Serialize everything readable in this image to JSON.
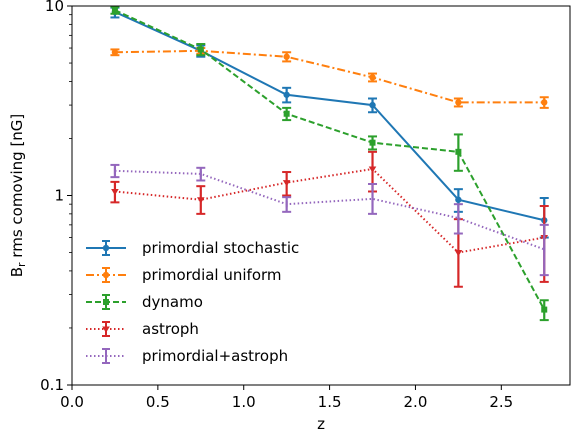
{
  "chart_data": {
    "type": "line",
    "xlabel": "z",
    "ylabel_main": "B",
    "ylabel_sub": "r",
    "ylabel_rest": " rms comoving [nG]",
    "xlim": [
      0.0,
      2.9
    ],
    "ylim": [
      0.1,
      10
    ],
    "yscale": "log",
    "xticks": [
      0.0,
      0.5,
      1.0,
      1.5,
      2.0,
      2.5
    ],
    "xtick_labels": [
      "0.0",
      "0.5",
      "1.0",
      "1.5",
      "2.0",
      "2.5"
    ],
    "yticks": [
      0.1,
      1,
      10
    ],
    "ytick_labels": [
      "0.1",
      "1",
      "10"
    ],
    "grid": false,
    "legend_position": "lower-left",
    "series": [
      {
        "name": "primordial stochastic",
        "color": "#1f77b4",
        "linestyle": "solid",
        "marker": "circle",
        "x": [
          0.25,
          0.75,
          1.25,
          1.75,
          2.25,
          2.75
        ],
        "y": [
          9.3,
          5.8,
          3.4,
          3.0,
          0.95,
          0.74
        ],
        "err_low": [
          8.7,
          5.4,
          3.1,
          2.75,
          0.82,
          0.6
        ],
        "err_high": [
          9.8,
          6.2,
          3.7,
          3.25,
          1.08,
          0.97
        ]
      },
      {
        "name": "primordial uniform",
        "color": "#ff7f0e",
        "linestyle": "dashdot",
        "marker": "circle",
        "x": [
          0.25,
          0.75,
          1.25,
          1.75,
          2.25,
          2.75
        ],
        "y": [
          5.7,
          5.8,
          5.4,
          4.2,
          3.1,
          3.1
        ],
        "err_low": [
          5.5,
          5.6,
          5.1,
          4.0,
          2.95,
          2.9
        ],
        "err_high": [
          5.9,
          6.0,
          5.7,
          4.4,
          3.25,
          3.3
        ]
      },
      {
        "name": "dynamo",
        "color": "#2ca02c",
        "linestyle": "dashed",
        "marker": "square",
        "x": [
          0.25,
          0.75,
          1.25,
          1.75,
          2.25,
          2.75
        ],
        "y": [
          9.5,
          5.9,
          2.7,
          1.9,
          1.7,
          0.25
        ],
        "err_low": [
          9.1,
          5.5,
          2.5,
          1.75,
          1.35,
          0.22
        ],
        "err_high": [
          9.9,
          6.3,
          2.9,
          2.05,
          2.1,
          0.28
        ]
      },
      {
        "name": "astroph",
        "color": "#d62728",
        "linestyle": "dotted",
        "marker": "triangle-down",
        "x": [
          0.25,
          0.75,
          1.25,
          1.75,
          2.25,
          2.75
        ],
        "y": [
          1.05,
          0.95,
          1.17,
          1.38,
          0.5,
          0.6
        ],
        "err_low": [
          0.92,
          0.8,
          1.0,
          1.05,
          0.33,
          0.35
        ],
        "err_high": [
          1.18,
          1.12,
          1.33,
          1.7,
          0.75,
          0.88
        ]
      },
      {
        "name": "primordial+astroph",
        "color": "#9467bd",
        "linestyle": "dotted",
        "marker": "tick",
        "x": [
          0.25,
          0.75,
          1.25,
          1.75,
          2.25,
          2.75
        ],
        "y": [
          1.35,
          1.3,
          0.9,
          0.96,
          0.76,
          0.52
        ],
        "err_low": [
          1.25,
          1.2,
          0.82,
          0.8,
          0.63,
          0.38
        ],
        "err_high": [
          1.45,
          1.4,
          0.98,
          1.15,
          0.9,
          0.7
        ]
      }
    ]
  }
}
